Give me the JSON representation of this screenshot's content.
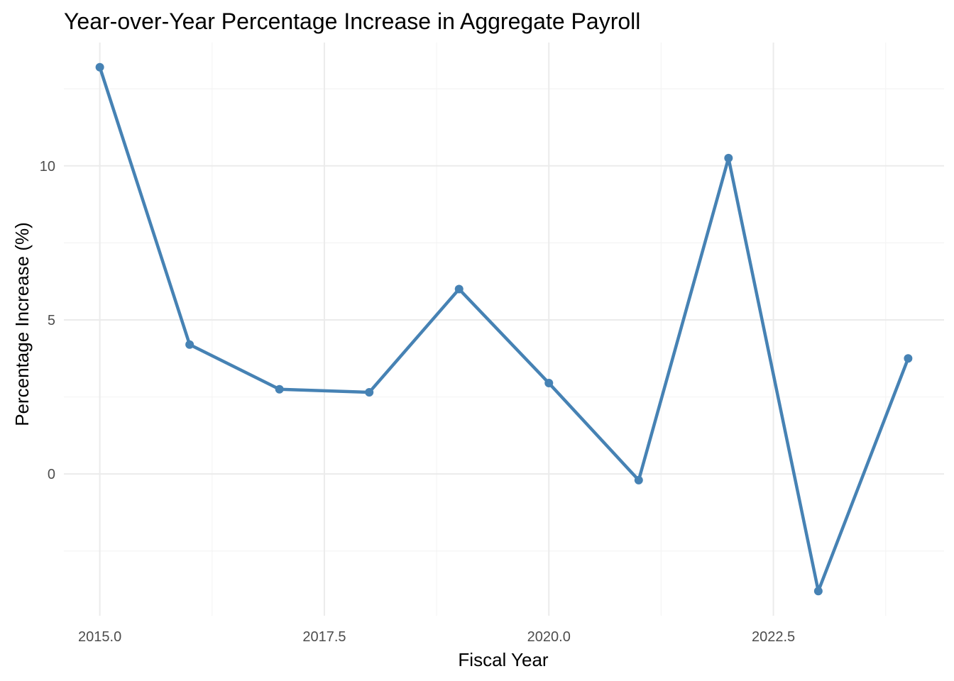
{
  "chart_data": {
    "type": "line",
    "title": "Year-over-Year Percentage Increase in Aggregate Payroll",
    "xlabel": "Fiscal Year",
    "ylabel": "Percentage Increase (%)",
    "x": [
      2015,
      2016,
      2017,
      2018,
      2019,
      2020,
      2021,
      2022,
      2023,
      2024
    ],
    "series": [
      {
        "values": [
          13.2,
          4.2,
          2.75,
          2.65,
          6.0,
          2.95,
          -0.2,
          10.25,
          -3.8,
          3.75
        ],
        "color": "#4682b4"
      }
    ],
    "xlim": [
      2014.6,
      2024.4
    ],
    "ylim": [
      -4.6,
      14.0
    ],
    "x_ticks": [
      2015.0,
      2017.5,
      2020.0,
      2022.5
    ],
    "x_tick_labels": [
      "2015.0",
      "2017.5",
      "2020.0",
      "2022.5"
    ],
    "y_ticks": [
      0,
      5,
      10
    ],
    "y_tick_labels": [
      "0",
      "5",
      "10"
    ],
    "x_minor_ticks": [
      2016.25,
      2018.75,
      2021.25,
      2023.75
    ],
    "y_minor_ticks": [
      -2.5,
      2.5,
      7.5,
      12.5
    ],
    "grid": true,
    "markers": true,
    "legend": "none"
  }
}
